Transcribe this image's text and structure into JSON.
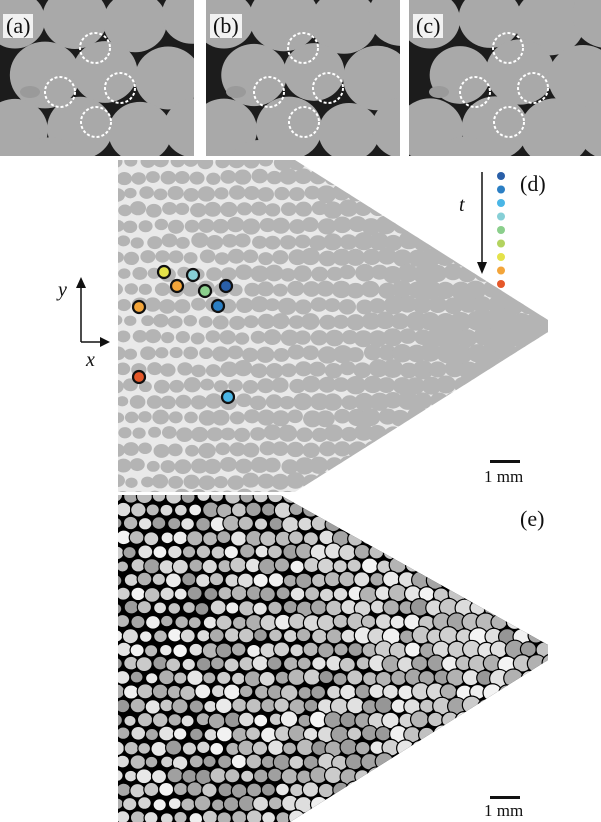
{
  "figure": {
    "panels": [
      {
        "label": "(a)"
      },
      {
        "label": "(b)"
      },
      {
        "label": "(c)"
      }
    ],
    "panel_d": {
      "label": "(d)",
      "time_label": "t",
      "axis_x_label": "x",
      "axis_y_label": "y",
      "scale_label": "1 mm",
      "legend_colors": [
        "#2a5fa8",
        "#2b7fc4",
        "#4ab6e6",
        "#86cfd6",
        "#8bcf8c",
        "#b3d35f",
        "#e4e24a",
        "#f3a53a",
        "#e5582a"
      ]
    },
    "panel_e": {
      "label": "(e)",
      "scale_label": "1 mm"
    }
  }
}
